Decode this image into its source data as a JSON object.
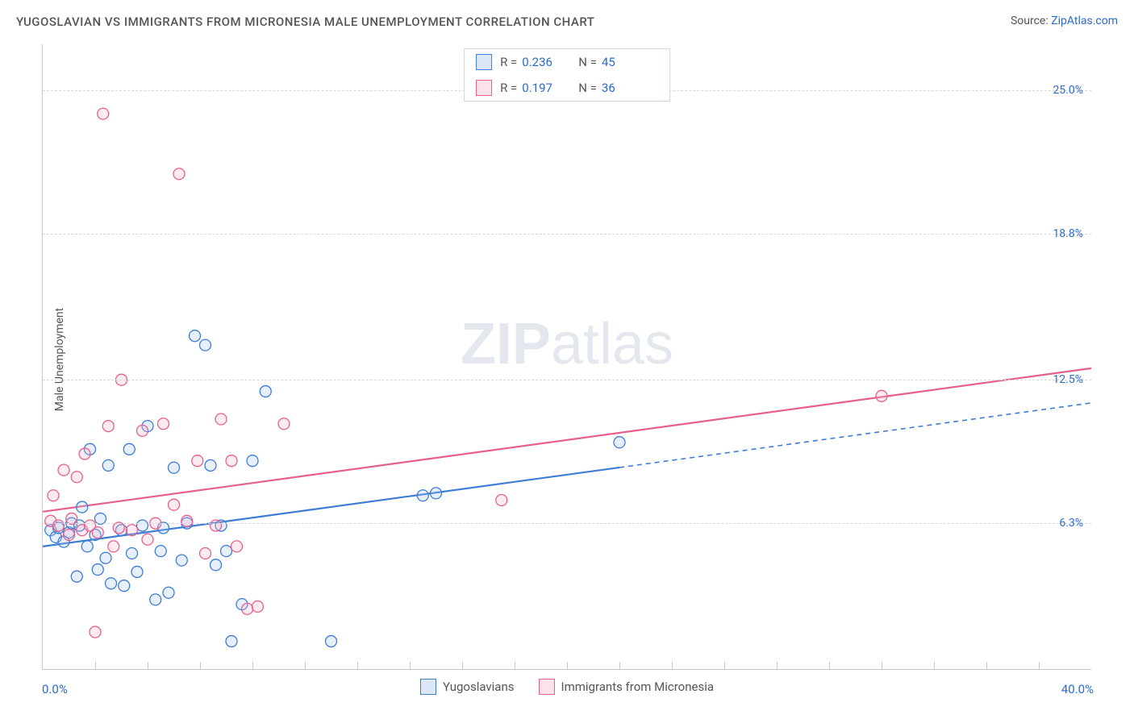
{
  "title": "YUGOSLAVIAN VS IMMIGRANTS FROM MICRONESIA MALE UNEMPLOYMENT CORRELATION CHART",
  "source_label": "Source:",
  "source_name": "ZipAtlas.com",
  "ylabel": "Male Unemployment",
  "watermark_a": "ZIP",
  "watermark_b": "atlas",
  "chart": {
    "type": "scatter",
    "xlim": [
      0,
      40
    ],
    "ylim": [
      0,
      27
    ],
    "x_origin_label": "0.0%",
    "x_max_label": "40.0%",
    "y_ticks": [
      {
        "v": 6.3,
        "label": "6.3%"
      },
      {
        "v": 12.5,
        "label": "12.5%"
      },
      {
        "v": 18.8,
        "label": "18.8%"
      },
      {
        "v": 25.0,
        "label": "25.0%"
      }
    ],
    "x_minor_ticks": [
      2,
      4,
      6,
      8,
      10,
      12,
      14,
      16,
      18,
      20,
      22,
      24,
      26,
      28,
      30,
      32,
      34,
      36,
      38
    ],
    "background_color": "#ffffff",
    "grid_color": "#d8d8d8",
    "marker_radius": 7,
    "marker_stroke_width": 1.3,
    "marker_fill_opacity": 0.28,
    "series": [
      {
        "name": "Yugoslavians",
        "R": "0.236",
        "N": "45",
        "color_stroke": "#3d7dd6",
        "color_fill": "#a8c6ee",
        "trend": {
          "y0": 5.3,
          "y40": 11.5,
          "solid_until_x": 22
        },
        "points": [
          [
            0.3,
            6.0
          ],
          [
            0.5,
            5.7
          ],
          [
            0.6,
            6.1
          ],
          [
            0.8,
            5.5
          ],
          [
            1.0,
            5.9
          ],
          [
            1.1,
            6.3
          ],
          [
            1.3,
            4.0
          ],
          [
            1.4,
            6.2
          ],
          [
            1.5,
            7.0
          ],
          [
            1.7,
            5.3
          ],
          [
            1.8,
            9.5
          ],
          [
            2.0,
            5.8
          ],
          [
            2.1,
            4.3
          ],
          [
            2.2,
            6.5
          ],
          [
            2.4,
            4.8
          ],
          [
            2.5,
            8.8
          ],
          [
            2.6,
            3.7
          ],
          [
            3.0,
            6.0
          ],
          [
            3.1,
            3.6
          ],
          [
            3.3,
            9.5
          ],
          [
            3.4,
            5.0
          ],
          [
            3.6,
            4.2
          ],
          [
            3.8,
            6.2
          ],
          [
            4.0,
            10.5
          ],
          [
            4.3,
            3.0
          ],
          [
            4.5,
            5.1
          ],
          [
            4.6,
            6.1
          ],
          [
            4.8,
            3.3
          ],
          [
            5.0,
            8.7
          ],
          [
            5.3,
            4.7
          ],
          [
            5.5,
            6.3
          ],
          [
            5.8,
            14.4
          ],
          [
            6.2,
            14.0
          ],
          [
            6.4,
            8.8
          ],
          [
            6.6,
            4.5
          ],
          [
            6.8,
            6.2
          ],
          [
            7.0,
            5.1
          ],
          [
            7.2,
            1.2
          ],
          [
            7.6,
            2.8
          ],
          [
            8.0,
            9.0
          ],
          [
            8.5,
            12.0
          ],
          [
            11.0,
            1.2
          ],
          [
            14.5,
            7.5
          ],
          [
            15.0,
            7.6
          ],
          [
            22.0,
            9.8
          ]
        ]
      },
      {
        "name": "Immigrants from Micronesia",
        "R": "0.197",
        "N": "36",
        "color_stroke": "#e75f8e",
        "color_fill": "#f4b7cc",
        "trend": {
          "y0": 6.8,
          "y40": 13.0,
          "solid_until_x": 40
        },
        "points": [
          [
            0.3,
            6.4
          ],
          [
            0.4,
            7.5
          ],
          [
            0.6,
            6.2
          ],
          [
            0.8,
            8.6
          ],
          [
            1.0,
            5.8
          ],
          [
            1.1,
            6.5
          ],
          [
            1.3,
            8.3
          ],
          [
            1.5,
            6.0
          ],
          [
            1.6,
            9.3
          ],
          [
            1.8,
            6.2
          ],
          [
            2.0,
            1.6
          ],
          [
            2.1,
            5.9
          ],
          [
            2.3,
            24.0
          ],
          [
            2.5,
            10.5
          ],
          [
            2.7,
            5.3
          ],
          [
            2.9,
            6.1
          ],
          [
            3.0,
            12.5
          ],
          [
            3.4,
            6.0
          ],
          [
            3.8,
            10.3
          ],
          [
            4.0,
            5.6
          ],
          [
            4.3,
            6.3
          ],
          [
            4.6,
            10.6
          ],
          [
            5.0,
            7.1
          ],
          [
            5.2,
            21.4
          ],
          [
            5.5,
            6.4
          ],
          [
            5.9,
            9.0
          ],
          [
            6.2,
            5.0
          ],
          [
            6.6,
            6.2
          ],
          [
            6.8,
            10.8
          ],
          [
            7.2,
            9.0
          ],
          [
            7.4,
            5.3
          ],
          [
            7.8,
            2.6
          ],
          [
            8.2,
            2.7
          ],
          [
            9.2,
            10.6
          ],
          [
            17.5,
            7.3
          ],
          [
            32.0,
            11.8
          ]
        ]
      }
    ]
  },
  "legend_top": {
    "r_label": "R =",
    "n_label": "N ="
  },
  "legend_bottom": [
    {
      "label": "Yugoslavians",
      "stroke": "#3d7dd6",
      "fill": "#a8c6ee"
    },
    {
      "label": "Immigrants from Micronesia",
      "stroke": "#e75f8e",
      "fill": "#f4b7cc"
    }
  ]
}
